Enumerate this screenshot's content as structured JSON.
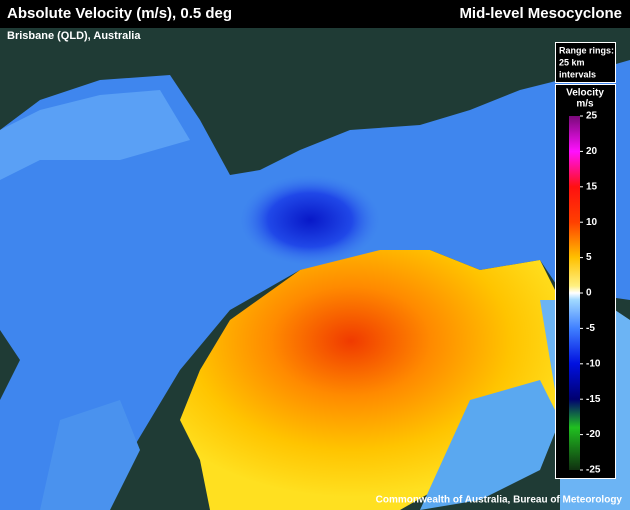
{
  "header": {
    "title": "Absolute Velocity (m/s), 0.5 deg",
    "subtitle": "Brisbane (QLD), Australia",
    "right_title": "Mid-level Mesocyclone"
  },
  "range_rings": [
    "Range rings:",
    "25 km",
    "intervals"
  ],
  "legend": {
    "title": [
      "Velocity",
      "m/s"
    ],
    "ticks": [
      25,
      20,
      15,
      10,
      5,
      0,
      -5,
      -10,
      -15,
      -20,
      -25
    ]
  },
  "footer": "Commonwealth of Australia, Bureau of Meteorology"
}
